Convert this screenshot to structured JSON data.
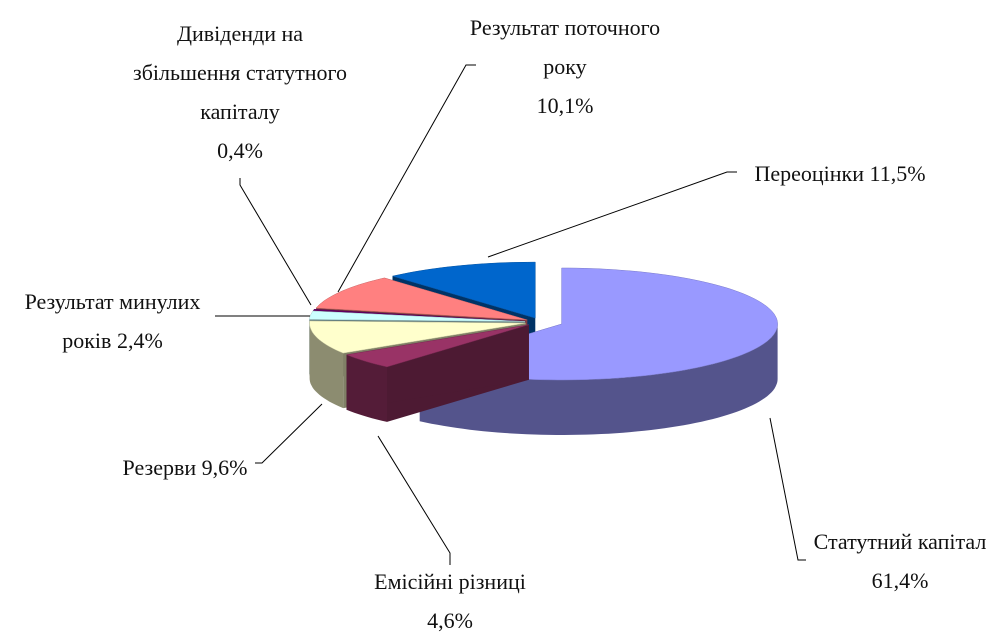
{
  "chart_data": {
    "type": "pie",
    "categories": [
      "Статутний капітал",
      "Емісійні різниці",
      "Резерви",
      "Результат минулих років",
      "Дивіденди на збільшення статутного капіталу",
      "Результат поточного року",
      "Переоцінки"
    ],
    "values": [
      61.4,
      4.6,
      9.6,
      2.4,
      0.4,
      10.1,
      11.5
    ],
    "value_labels": [
      "61,4%",
      "4,6%",
      "9,6%",
      "2,4%",
      "0,4%",
      "10,1%",
      "11,5%"
    ],
    "colors": [
      "#9999ff",
      "#993366",
      "#ffffcc",
      "#ccffff",
      "#660066",
      "#ff8080",
      "#0066cc"
    ]
  }
}
